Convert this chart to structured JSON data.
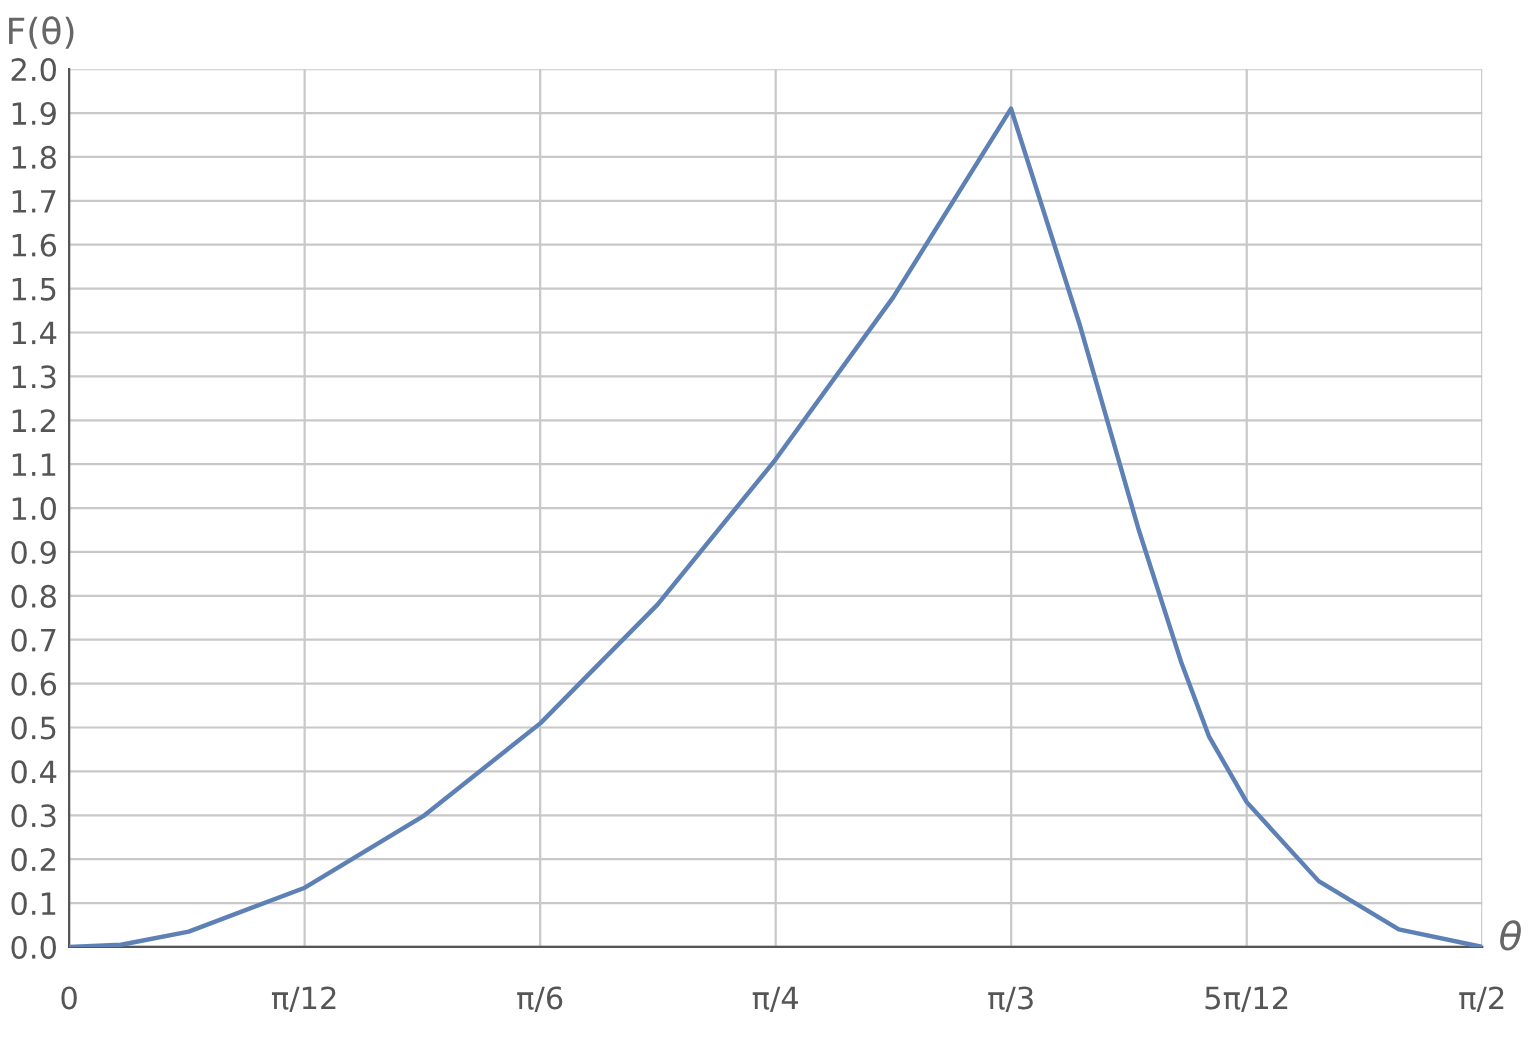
{
  "chart_data": {
    "type": "line",
    "xlabel": "θ",
    "ylabel": "F(θ)",
    "x": [
      0,
      0.0577,
      0.133,
      0.262,
      0.395,
      0.524,
      0.654,
      0.785,
      0.916,
      1.047,
      1.123,
      1.189,
      1.236,
      1.267,
      1.309,
      1.389,
      1.478,
      1.5708
    ],
    "series": [
      {
        "color": "#5e81b5",
        "values": [
          0,
          0.005,
          0.035,
          0.135,
          0.3,
          0.51,
          0.78,
          1.11,
          1.48,
          1.91,
          1.42,
          0.95,
          0.65,
          0.48,
          0.33,
          0.15,
          0.04,
          0
        ]
      }
    ],
    "xlim": [
      0,
      1.5708
    ],
    "ylim": [
      0,
      2.0
    ],
    "xticks": [
      {
        "value": 0,
        "label": "0"
      },
      {
        "value": 0.2618,
        "label": "π/12"
      },
      {
        "value": 0.5236,
        "label": "π/6"
      },
      {
        "value": 0.7854,
        "label": "π/4"
      },
      {
        "value": 1.0472,
        "label": "π/3"
      },
      {
        "value": 1.309,
        "label": "5π/12"
      },
      {
        "value": 1.5708,
        "label": "π/2"
      }
    ],
    "yticks": [
      {
        "value": 0,
        "label": "0.0"
      },
      0.1,
      0.2,
      0.3,
      0.4,
      0.5,
      0.6,
      0.7,
      0.8,
      0.9,
      {
        "value": 1,
        "label": "1.0"
      },
      1.1,
      1.2,
      1.3,
      1.4,
      1.5,
      1.6,
      1.7,
      1.8,
      1.9,
      {
        "value": 2,
        "label": "2.0"
      }
    ],
    "grid": true,
    "marker": "none",
    "line_style": "solid",
    "legend": false
  }
}
